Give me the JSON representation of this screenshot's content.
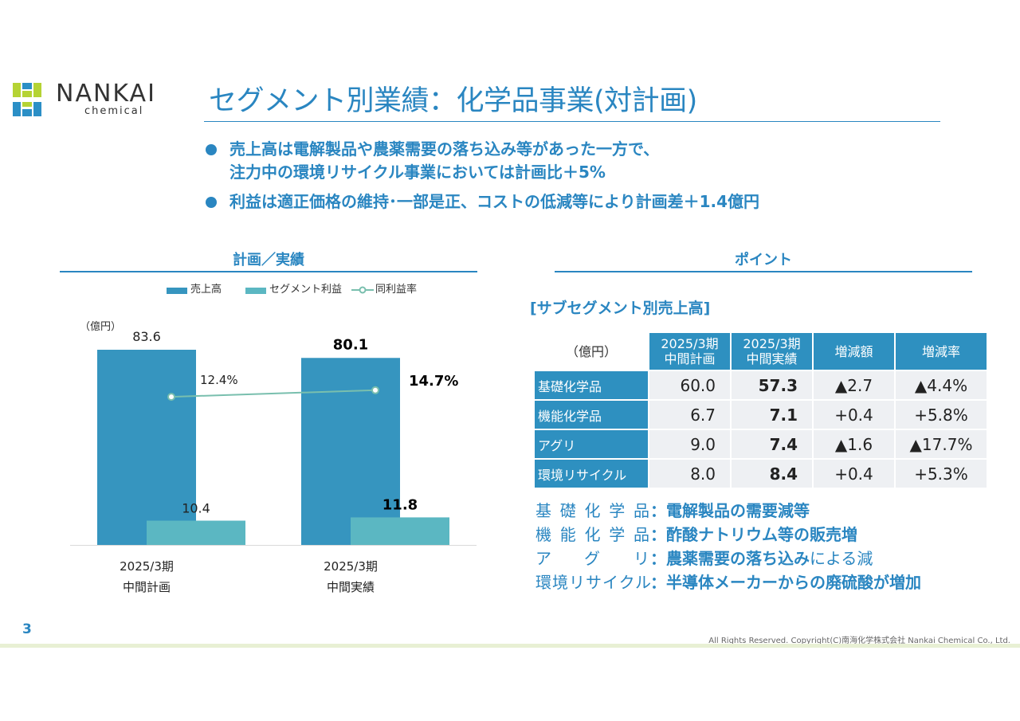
{
  "header": {
    "logo_text": "NANKAI",
    "logo_sub": "chemical",
    "title": "セグメント別業績：化学品事業(対計画)"
  },
  "bullets": [
    {
      "line1": "売上高は電解製品や農薬需要の落ち込み等があった一方で、",
      "line2": "注力中の環境リサイクル事業においては計画比＋5%"
    },
    {
      "line1": "利益は適正価格の維持･一部是正、コストの低減等により計画差＋1.4億円",
      "line2": ""
    }
  ],
  "left_section": {
    "title": "計画／実績"
  },
  "right_section": {
    "title": "ポイント"
  },
  "chart_data": {
    "type": "bar",
    "unit_label": "（億円）",
    "categories": [
      {
        "line1": "2025/3期",
        "line2": "中間計画"
      },
      {
        "line1": "2025/3期",
        "line2": "中間実績"
      }
    ],
    "series": [
      {
        "name": "売上高",
        "values": [
          83.6,
          80.1
        ],
        "labels": [
          "83.6",
          "80.1"
        ],
        "color": "#3695bf"
      },
      {
        "name": "セグメント利益",
        "values": [
          10.4,
          11.8
        ],
        "labels": [
          "10.4",
          "11.8"
        ],
        "color": "#5bb7c2"
      },
      {
        "name": "同利益率",
        "type": "line",
        "values": [
          12.4,
          14.7
        ],
        "labels": [
          "12.4%",
          "14.7%"
        ],
        "color": "#79bfae"
      }
    ],
    "ylim": [
      0,
      90
    ],
    "grid": false,
    "legend_position": "top"
  },
  "subsegment_table": {
    "title": "[サブセグメント別売上高]",
    "unit": "（億円）",
    "headers": [
      {
        "line1": "2025/3期",
        "line2": "中間計画"
      },
      {
        "line1": "2025/3期",
        "line2": "中間実績"
      },
      {
        "line1": "増減額",
        "line2": ""
      },
      {
        "line1": "増減率",
        "line2": ""
      }
    ],
    "rows": [
      {
        "name": "基礎化学品",
        "plan": "60.0",
        "actual": "57.3",
        "diff": "▲2.7",
        "rate": "▲4.4%"
      },
      {
        "name": "機能化学品",
        "plan": "6.7",
        "actual": "7.1",
        "diff": "+0.4",
        "rate": "+5.8%"
      },
      {
        "name": "アグリ",
        "plan": "9.0",
        "actual": "7.4",
        "diff": "▲1.6",
        "rate": "▲17.7%"
      },
      {
        "name": "環境リサイクル",
        "plan": "8.0",
        "actual": "8.4",
        "diff": "+0.4",
        "rate": "+5.3%"
      }
    ]
  },
  "points": [
    {
      "label": "基礎化学品",
      "colon": "：",
      "desc": "電解製品の需要減等",
      "desc_tail": ""
    },
    {
      "label": "機能化学品",
      "colon": "：",
      "desc": "酢酸ナトリウム等の販売増",
      "desc_tail": ""
    },
    {
      "label": "アグリ",
      "colon": "：",
      "desc": "農薬需要の落ち込み",
      "desc_tail": "による減"
    },
    {
      "label": "環境リサイクル",
      "colon": "：",
      "desc": "半導体メーカーからの廃硫酸が増加",
      "desc_tail": ""
    }
  ],
  "footer": {
    "page": "3",
    "copyright": "All Rights Reserved. Copyright(C)南海化学株式会社 Nankai Chemical Co., Ltd."
  },
  "colors": {
    "accent": "#2a86c1",
    "logo_green": "#b5d334",
    "logo_blue": "#2b8fc6",
    "table_header": "#2e90c0",
    "table_cell": "#eef0f3"
  }
}
